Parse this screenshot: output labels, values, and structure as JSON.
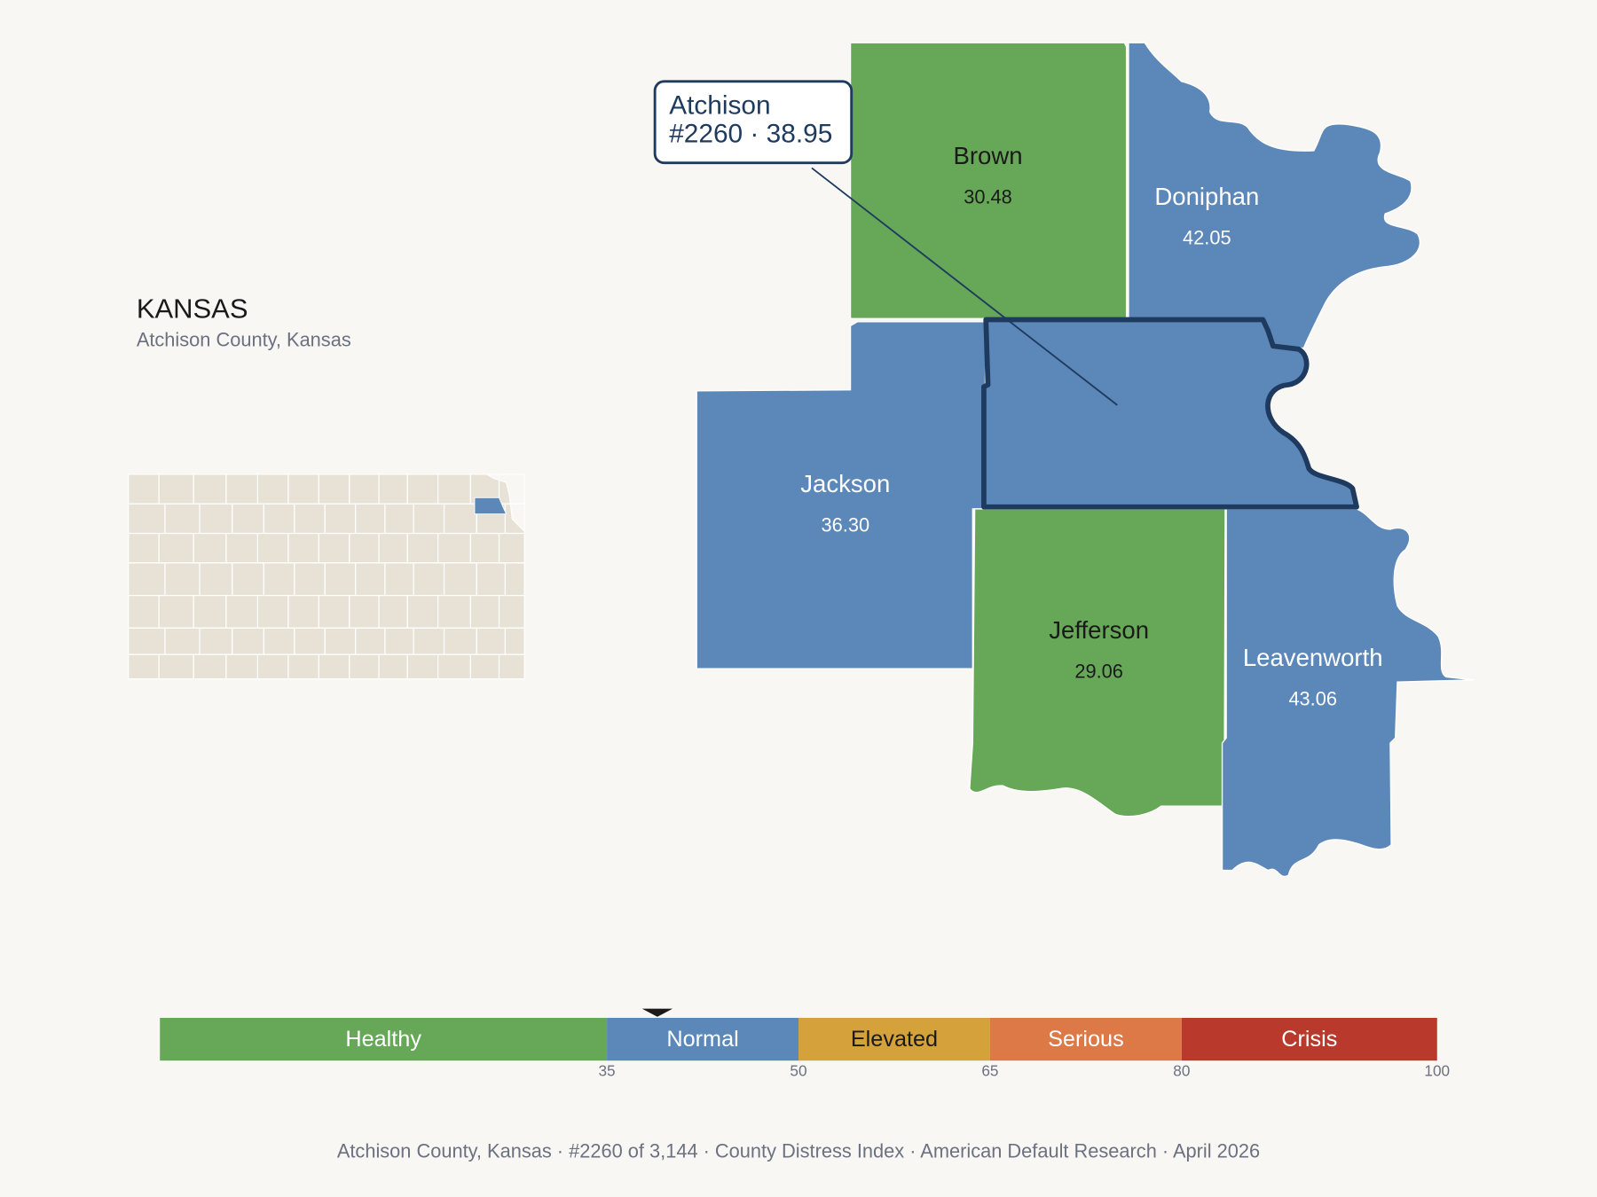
{
  "map": {
    "state": "KANSAS",
    "subtitle": "Atchison County, Kansas",
    "focus": {
      "name": "Atchison",
      "label": "#2260 · 38.95",
      "value": 38.95
    },
    "counties": [
      {
        "name": "Brown",
        "value": 30.48,
        "value_label": "30.48"
      },
      {
        "name": "Doniphan",
        "value": 42.05,
        "value_label": "42.05"
      },
      {
        "name": "Jackson",
        "value": 36.3,
        "value_label": "36.30"
      },
      {
        "name": "Jefferson",
        "value": 29.06,
        "value_label": "29.06"
      },
      {
        "name": "Leavenworth",
        "value": 43.06,
        "value_label": "43.06"
      }
    ],
    "scale": {
      "range": [
        0,
        100
      ],
      "ticks": [
        35,
        50,
        65,
        80,
        100
      ],
      "bands": [
        {
          "label": "Healthy",
          "color": "#67a758"
        },
        {
          "label": "Normal",
          "color": "#5b88b9"
        },
        {
          "label": "Elevated",
          "color": "#d4a13a"
        },
        {
          "label": "Serious",
          "color": "#dd7847"
        },
        {
          "label": "Crisis",
          "color": "#b93a2c"
        }
      ]
    },
    "footer": "Atchison County, Kansas  ·  #2260 of 3,144  ·  County Distress Index  ·  American Default Research  ·  April 2026"
  }
}
